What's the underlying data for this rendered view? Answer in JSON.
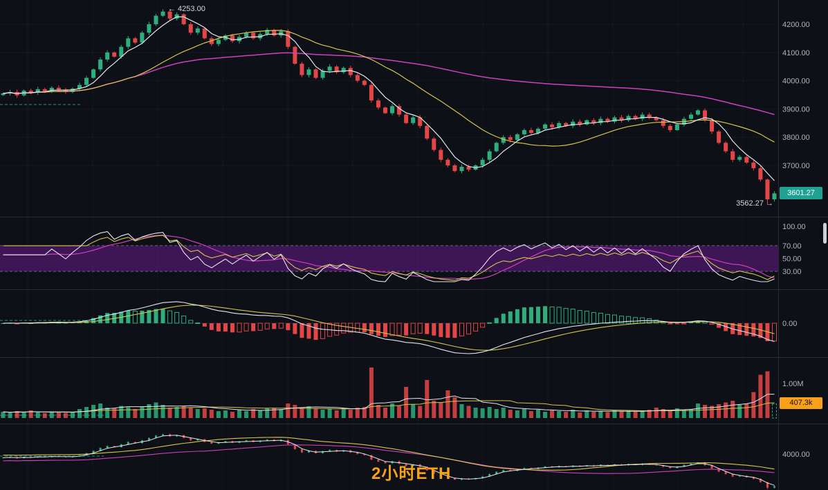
{
  "app": {
    "background": "#0d1016"
  },
  "annotations": {
    "watermark": "2小时ETH",
    "high_label": "← 4253.00",
    "low_label": "3562.27 →",
    "last_price_badge": "3601.27",
    "volume_badge": "407.3k"
  },
  "axis_labels": {
    "main": [
      {
        "label": "4200.00",
        "value": 4200
      },
      {
        "label": "4100.00",
        "value": 4100
      },
      {
        "label": "4000.00",
        "value": 4000
      },
      {
        "label": "3900.00",
        "value": 3900
      },
      {
        "label": "3800.00",
        "value": 3800
      },
      {
        "label": "3700.00",
        "value": 3700
      }
    ],
    "rsi": [
      {
        "label": "100.00",
        "value": 100
      },
      {
        "label": "70.00",
        "value": 70
      },
      {
        "label": "50.00",
        "value": 50
      },
      {
        "label": "30.00",
        "value": 30
      }
    ],
    "macd": [
      {
        "label": "0.00",
        "value": 0
      }
    ],
    "volume": [
      {
        "label": "1.00M",
        "value": 1000
      }
    ],
    "mini": [
      {
        "label": "4000.00",
        "value": 4000
      }
    ]
  },
  "colors": {
    "up": "#2eae7d",
    "down": "#e34646",
    "ma_fast": "#e4e7ee",
    "ma_mid": "#d6c64a",
    "ma_slow": "#cf3fc0",
    "band": "rgba(123,31,162,0.45)",
    "axis_text": "#b2b5be",
    "grid": "rgba(197,203,206,0.05)",
    "separator": "#262b3a",
    "badge_price": "#1fa294",
    "badge_volume": "#f8a019",
    "watermark": "#f7a11a"
  },
  "chart_data": [
    {
      "type": "candlestick",
      "name": "ETH price, 2-hour candles with MA ribbon (fast/mid/slow)",
      "symbol": "ETH",
      "timeframe": "2小时",
      "session_high": 4253.0,
      "session_low": 3562.27,
      "last_price": 3601.27,
      "y_axis_ticks": [
        4200,
        4100,
        4000,
        3900,
        3800,
        3700
      ],
      "closes": [
        3955,
        3960,
        3948,
        3965,
        3958,
        3970,
        3962,
        3975,
        3968,
        3960,
        3972,
        3985,
        4010,
        4040,
        4075,
        4100,
        4085,
        4120,
        4150,
        4135,
        4170,
        4200,
        4230,
        4245,
        4220,
        4235,
        4200,
        4170,
        4185,
        4150,
        4130,
        4145,
        4160,
        4140,
        4155,
        4170,
        4150,
        4165,
        4180,
        4160,
        4175,
        4120,
        4060,
        4020,
        4040,
        4010,
        4035,
        4050,
        4030,
        4045,
        4020,
        4000,
        3985,
        3930,
        3905,
        3885,
        3910,
        3880,
        3850,
        3870,
        3840,
        3795,
        3755,
        3720,
        3700,
        3680,
        3695,
        3685,
        3700,
        3720,
        3750,
        3780,
        3800,
        3790,
        3810,
        3825,
        3815,
        3830,
        3845,
        3835,
        3850,
        3840,
        3855,
        3845,
        3860,
        3850,
        3865,
        3855,
        3870,
        3860,
        3875,
        3865,
        3880,
        3870,
        3860,
        3840,
        3825,
        3845,
        3865,
        3880,
        3895,
        3860,
        3820,
        3780,
        3750,
        3720,
        3730,
        3710,
        3690,
        3650,
        3580,
        3601
      ]
    },
    {
      "type": "line",
      "name": "RSI oscillator pane (fast, slow, smoothed)",
      "levels": [
        100,
        70,
        50,
        30
      ],
      "band": [
        30,
        70
      ],
      "series": [
        "rsi-fast",
        "rsi-slow",
        "rsi-smoothed"
      ]
    },
    {
      "type": "bar",
      "name": "MACD histogram with MACD and signal lines",
      "zero_axis": 0
    },
    {
      "type": "bar",
      "name": "Volume",
      "unit": "k",
      "axis_tick": "1.00M",
      "last_label": "407.3k",
      "values": [
        180,
        150,
        200,
        160,
        220,
        170,
        140,
        190,
        160,
        150,
        170,
        260,
        320,
        380,
        420,
        300,
        280,
        350,
        310,
        260,
        330,
        400,
        450,
        380,
        300,
        320,
        350,
        300,
        260,
        280,
        240,
        200,
        220,
        180,
        240,
        200,
        260,
        220,
        280,
        300,
        260,
        420,
        380,
        300,
        340,
        280,
        240,
        260,
        220,
        280,
        240,
        300,
        320,
        1460,
        380,
        300,
        420,
        350,
        900,
        400,
        350,
        1100,
        500,
        450,
        800,
        600,
        400,
        350,
        300,
        280,
        320,
        260,
        300,
        240,
        220,
        260,
        200,
        240,
        180,
        220,
        200,
        180,
        240,
        160,
        220,
        180,
        200,
        170,
        230,
        190,
        210,
        180,
        200,
        240,
        300,
        260,
        220,
        280,
        240,
        260,
        420,
        380,
        350,
        400,
        450,
        500,
        380,
        420,
        750,
        1250,
        1350,
        407
      ]
    },
    {
      "type": "candlestick",
      "name": "ETH compressed overview pane (same series, compressed scale)",
      "y_axis_ticks": [
        4000
      ]
    }
  ]
}
